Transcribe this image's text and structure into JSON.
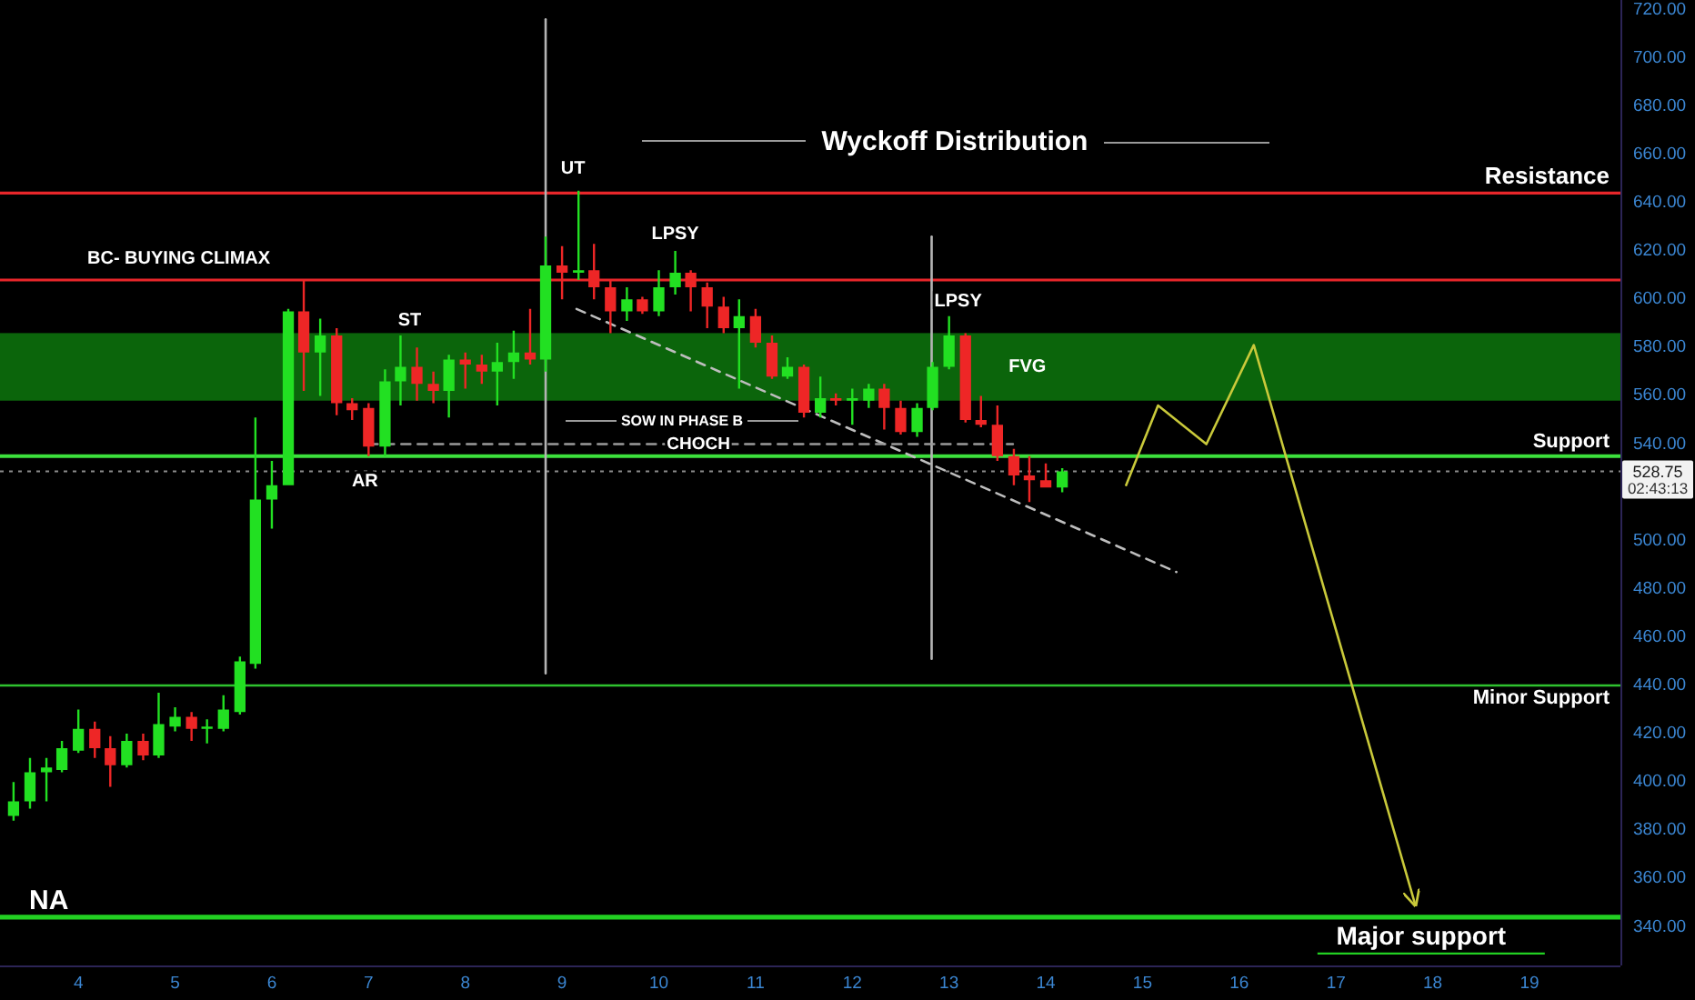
{
  "chart_data": {
    "type": "candlestick",
    "title": "Wyckoff Distribution",
    "x": [
      3.33,
      3.5,
      3.67,
      3.83,
      4,
      4.17,
      4.33,
      4.5,
      4.67,
      4.83,
      5,
      5.17,
      5.33,
      5.5,
      5.67,
      5.83,
      6,
      6.17,
      6.33,
      6.5,
      6.67,
      6.83,
      7,
      7.17,
      7.33,
      7.5,
      7.67,
      7.83,
      8,
      8.17,
      8.33,
      8.5,
      8.67,
      8.83,
      9,
      9.17,
      9.33,
      9.5,
      9.67,
      9.83,
      10,
      10.17,
      10.33,
      10.5,
      10.67,
      10.83,
      11,
      11.17,
      11.33,
      11.5,
      11.67,
      11.83,
      12,
      12.17,
      12.33,
      12.5,
      12.67,
      12.83,
      13,
      13.17,
      13.33,
      13.5,
      13.67,
      13.83,
      14,
      14.17
    ],
    "ohlc": [
      [
        386,
        400,
        384,
        392
      ],
      [
        392,
        410,
        389,
        404
      ],
      [
        404,
        410,
        392,
        406
      ],
      [
        405,
        417,
        404,
        414
      ],
      [
        413,
        430,
        412,
        422
      ],
      [
        422,
        425,
        410,
        414
      ],
      [
        414,
        419,
        398,
        407
      ],
      [
        407,
        420,
        406,
        417
      ],
      [
        417,
        420,
        409,
        411
      ],
      [
        411,
        437,
        410,
        424
      ],
      [
        423,
        431,
        421,
        427
      ],
      [
        427,
        429,
        417,
        422
      ],
      [
        422,
        426,
        416,
        423
      ],
      [
        422,
        436,
        421,
        430
      ],
      [
        429,
        452,
        428,
        450
      ],
      [
        449,
        551,
        447,
        517
      ],
      [
        517,
        533,
        505,
        523
      ],
      [
        523,
        596,
        523,
        595
      ],
      [
        595,
        608,
        562,
        578
      ],
      [
        578,
        592,
        560,
        585
      ],
      [
        585,
        588,
        552,
        557
      ],
      [
        557,
        559,
        550,
        554
      ],
      [
        555,
        557,
        535,
        539
      ],
      [
        539,
        571,
        535,
        566
      ],
      [
        566,
        585,
        556,
        572
      ],
      [
        572,
        580,
        558,
        565
      ],
      [
        565,
        570,
        557,
        562
      ],
      [
        562,
        577,
        551,
        575
      ],
      [
        575,
        578,
        563,
        573
      ],
      [
        573,
        577,
        565,
        570
      ],
      [
        570,
        582,
        556,
        574
      ],
      [
        574,
        587,
        567,
        578
      ],
      [
        578,
        596,
        573,
        575
      ],
      [
        575,
        626,
        570,
        614
      ],
      [
        614,
        622,
        600,
        611
      ],
      [
        611,
        645,
        608,
        612
      ],
      [
        612,
        623,
        600,
        605
      ],
      [
        605,
        608,
        586,
        595
      ],
      [
        595,
        605,
        591,
        600
      ],
      [
        600,
        601,
        594,
        595
      ],
      [
        595,
        612,
        593,
        605
      ],
      [
        605,
        620,
        602,
        611
      ],
      [
        611,
        612,
        595,
        605
      ],
      [
        605,
        607,
        588,
        597
      ],
      [
        597,
        601,
        586,
        588
      ],
      [
        588,
        600,
        563,
        593
      ],
      [
        593,
        596,
        580,
        582
      ],
      [
        582,
        585,
        567,
        568
      ],
      [
        568,
        576,
        567,
        572
      ],
      [
        572,
        573,
        551,
        553
      ],
      [
        553,
        568,
        551,
        559
      ],
      [
        559,
        561,
        556,
        558
      ],
      [
        558,
        563,
        548,
        559
      ],
      [
        558,
        565,
        555,
        563
      ],
      [
        563,
        565,
        546,
        555
      ],
      [
        555,
        558,
        544,
        545
      ],
      [
        545,
        557,
        543,
        555
      ],
      [
        555,
        574,
        554,
        572
      ],
      [
        572,
        593,
        571,
        585
      ],
      [
        585,
        586,
        549,
        550
      ],
      [
        550,
        560,
        547,
        548
      ],
      [
        548,
        556,
        533,
        535
      ],
      [
        535,
        538,
        523,
        527
      ],
      [
        527,
        535,
        516,
        525
      ],
      [
        525,
        532,
        522,
        522
      ],
      [
        522,
        530,
        520,
        528.75
      ]
    ],
    "colors": [
      "#22e022",
      "#22e022",
      "#22e022",
      "#22e022",
      "#22e022",
      "#ee2626",
      "#ee2626",
      "#22e022",
      "#ee2626",
      "#22e022",
      "#22e022",
      "#ee2626",
      "#22e022",
      "#22e022",
      "#22e022",
      "#22e022",
      "#22e022",
      "#22e022",
      "#ee2626",
      "#22e022",
      "#ee2626",
      "#ee2626",
      "#ee2626",
      "#22e022",
      "#22e022",
      "#ee2626",
      "#ee2626",
      "#22e022",
      "#ee2626",
      "#ee2626",
      "#22e022",
      "#22e022",
      "#ee2626",
      "#22e022",
      "#ee2626",
      "#22e022",
      "#ee2626",
      "#ee2626",
      "#22e022",
      "#ee2626",
      "#22e022",
      "#22e022",
      "#ee2626",
      "#ee2626",
      "#ee2626",
      "#22e022",
      "#ee2626",
      "#ee2626",
      "#22e022",
      "#ee2626",
      "#22e022",
      "#ee2626",
      "#22e022",
      "#22e022",
      "#ee2626",
      "#ee2626",
      "#22e022",
      "#22e022",
      "#22e022",
      "#ee2626",
      "#ee2626",
      "#ee2626",
      "#ee2626",
      "#ee2626",
      "#ee2626",
      "#22e022"
    ],
    "series": [
      {
        "type": "line",
        "color": "#b4b4b4",
        "x": [
          8.83,
          8.83
        ],
        "values": [
          716,
          445
        ]
      },
      {
        "type": "line",
        "color": "#b4b4b4",
        "x": [
          12.82,
          12.82
        ],
        "values": [
          626,
          451
        ]
      },
      {
        "type": "line",
        "color": "#bdbdbd",
        "line_style": "dashed",
        "x": [
          9.15,
          15.35
        ],
        "values": [
          596,
          487
        ]
      },
      {
        "type": "line",
        "color": "#9a9a9a",
        "line_style": "dashed",
        "x": [
          7,
          13.66
        ],
        "values": [
          540,
          540
        ]
      },
      {
        "type": "line",
        "color": "#c9c93a",
        "x": [
          14.83,
          15.16,
          15.66,
          16.15,
          17.82
        ],
        "values": [
          523,
          556,
          540,
          581,
          349
        ]
      }
    ],
    "ref_lines": [
      {
        "axis": "y",
        "value": 644,
        "label": "Resistance",
        "color": "#e8262a"
      },
      {
        "axis": "y",
        "value": 608,
        "label": "BC- BUYING CLIMAX",
        "color": "#e8262a"
      },
      {
        "axis": "y",
        "value": 535,
        "label": "Support",
        "color": "#3ce03c"
      },
      {
        "axis": "y",
        "value": 440,
        "label": "Minor Support",
        "color": "#2fc22f"
      },
      {
        "axis": "y",
        "value": 344,
        "label": "Major support",
        "color": "#22d022"
      },
      {
        "axis": "y",
        "value": 528.75,
        "label": "528.75",
        "color": "#8c8c8c",
        "line_style": "dotted"
      }
    ],
    "bands": [
      {
        "axis": "y",
        "from": 558,
        "to": 586,
        "label": "FVG",
        "color": "#0b650b"
      }
    ],
    "annotations": [
      "NA",
      "02:43:13",
      "SOW IN PHASE B",
      {
        "text": "ST",
        "x": 7.33,
        "y": 585
      },
      {
        "text": "AR",
        "x": 7,
        "y": 535
      },
      {
        "text": "UT",
        "x": 9.17,
        "y": 645
      },
      {
        "text": "LPSY",
        "x": 10.17,
        "y": 620
      },
      {
        "text": "LPSY",
        "x": 13,
        "y": 593
      },
      {
        "text": "CHOCH",
        "x": 10.41,
        "y": 540
      }
    ],
    "xlim": [
      3.19,
      19.94
    ],
    "ylim": [
      324,
      724
    ],
    "xticks": [
      4,
      5,
      6,
      7,
      8,
      9,
      10,
      11,
      12,
      13,
      14,
      15,
      16,
      17,
      18,
      19
    ],
    "yticks": [
      {
        "value": 340,
        "label": "340.00"
      },
      {
        "value": 360,
        "label": "360.00"
      },
      {
        "value": 380,
        "label": "380.00"
      },
      {
        "value": 400,
        "label": "400.00"
      },
      {
        "value": 420,
        "label": "420.00"
      },
      {
        "value": 440,
        "label": "440.00"
      },
      {
        "value": 460,
        "label": "460.00"
      },
      {
        "value": 480,
        "label": "480.00"
      },
      {
        "value": 500,
        "label": "500.00"
      },
      {
        "value": 540,
        "label": "540.00"
      },
      {
        "value": 560,
        "label": "560.00"
      },
      {
        "value": 580,
        "label": "580.00"
      },
      {
        "value": 600,
        "label": "600.00"
      },
      {
        "value": 620,
        "label": "620.00"
      },
      {
        "value": 640,
        "label": "640.00"
      },
      {
        "value": 660,
        "label": "660.00"
      },
      {
        "value": 680,
        "label": "680.00"
      },
      {
        "value": 700,
        "label": "700.00"
      },
      {
        "value": 720,
        "label": "720.00"
      }
    ]
  }
}
